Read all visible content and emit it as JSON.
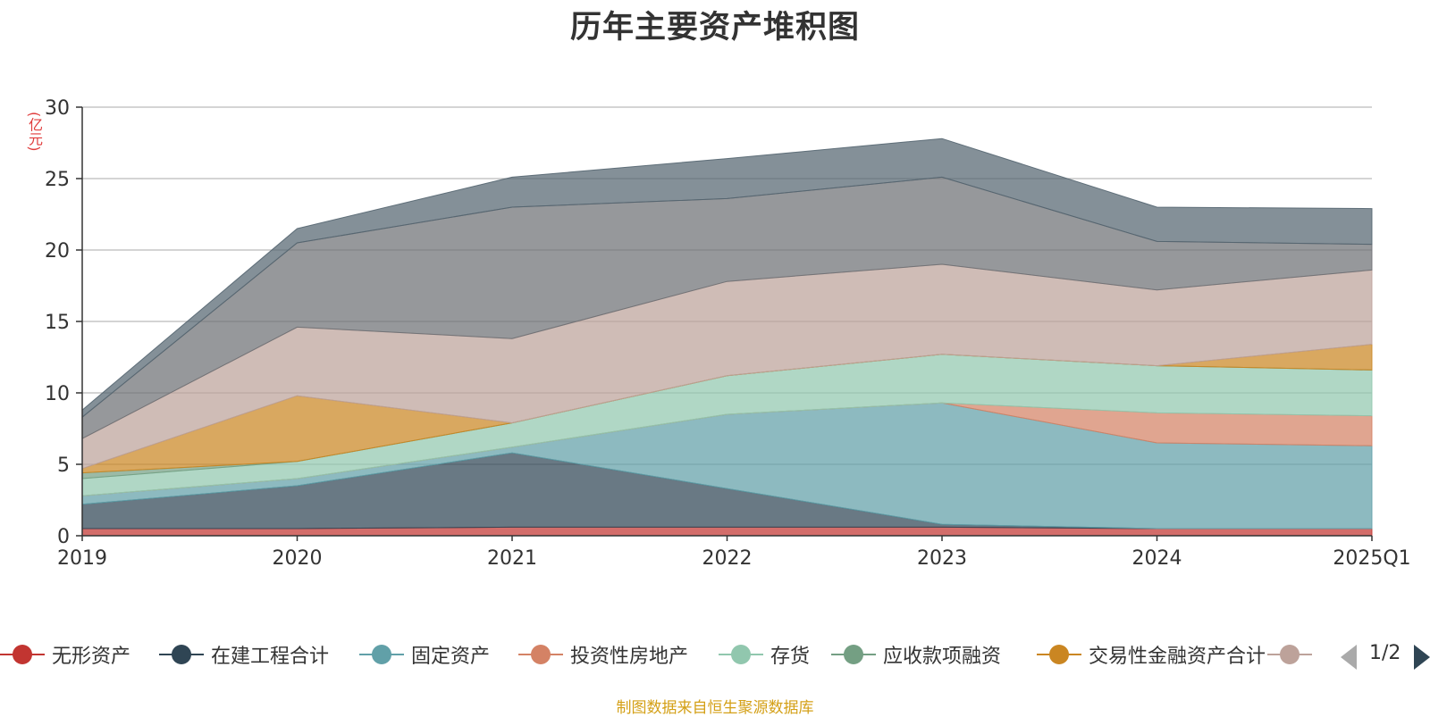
{
  "title": "历年主要资产堆积图",
  "unit": "(亿元)",
  "source": "制图数据来自恒生聚源数据库",
  "pager": {
    "text": "1/2"
  },
  "chart_data": {
    "type": "area",
    "stacked": true,
    "categories": [
      "2019",
      "2020",
      "2021",
      "2022",
      "2023",
      "2024",
      "2025Q1"
    ],
    "ylim": [
      0,
      30
    ],
    "yticks": [
      0,
      5,
      10,
      15,
      20,
      25,
      30
    ],
    "grid": true,
    "legend_position": "bottom",
    "series": [
      {
        "name": "无形资产",
        "color": "#c23531",
        "values": [
          0.5,
          0.5,
          0.6,
          0.6,
          0.6,
          0.5,
          0.5
        ]
      },
      {
        "name": "在建工程合计",
        "color": "#2f4554",
        "values": [
          1.7,
          3.0,
          5.2,
          2.7,
          0.2,
          0.0,
          0.0
        ]
      },
      {
        "name": "固定资产",
        "color": "#61a0a8",
        "values": [
          0.6,
          0.5,
          0.4,
          5.2,
          8.5,
          6.0,
          5.8
        ]
      },
      {
        "name": "投资性房地产",
        "color": "#d48265",
        "values": [
          0.0,
          0.0,
          0.0,
          0.0,
          0.0,
          2.1,
          2.1
        ]
      },
      {
        "name": "存货",
        "color": "#91c7ae",
        "values": [
          1.2,
          1.2,
          1.7,
          2.7,
          3.4,
          3.3,
          3.2
        ]
      },
      {
        "name": "应收款项融资",
        "color": "#749f83",
        "values": [
          0.4,
          0.0,
          0.0,
          0.0,
          0.0,
          0.0,
          0.0
        ]
      },
      {
        "name": "交易性金融资产合计",
        "color": "#ca8622",
        "values": [
          0.3,
          4.6,
          0.0,
          0.0,
          0.0,
          0.0,
          1.8
        ]
      },
      {
        "name": "",
        "color": "#bda29a",
        "values": [
          2.1,
          4.8,
          5.9,
          6.6,
          6.3,
          5.3,
          5.2
        ]
      },
      {
        "name": "",
        "color": "#6e7074",
        "values": [
          1.5,
          5.9,
          9.2,
          5.8,
          6.1,
          3.4,
          1.8
        ]
      },
      {
        "name": "",
        "color": "#546570",
        "values": [
          0.5,
          1.0,
          2.1,
          2.8,
          2.7,
          2.4,
          2.5
        ]
      }
    ]
  }
}
